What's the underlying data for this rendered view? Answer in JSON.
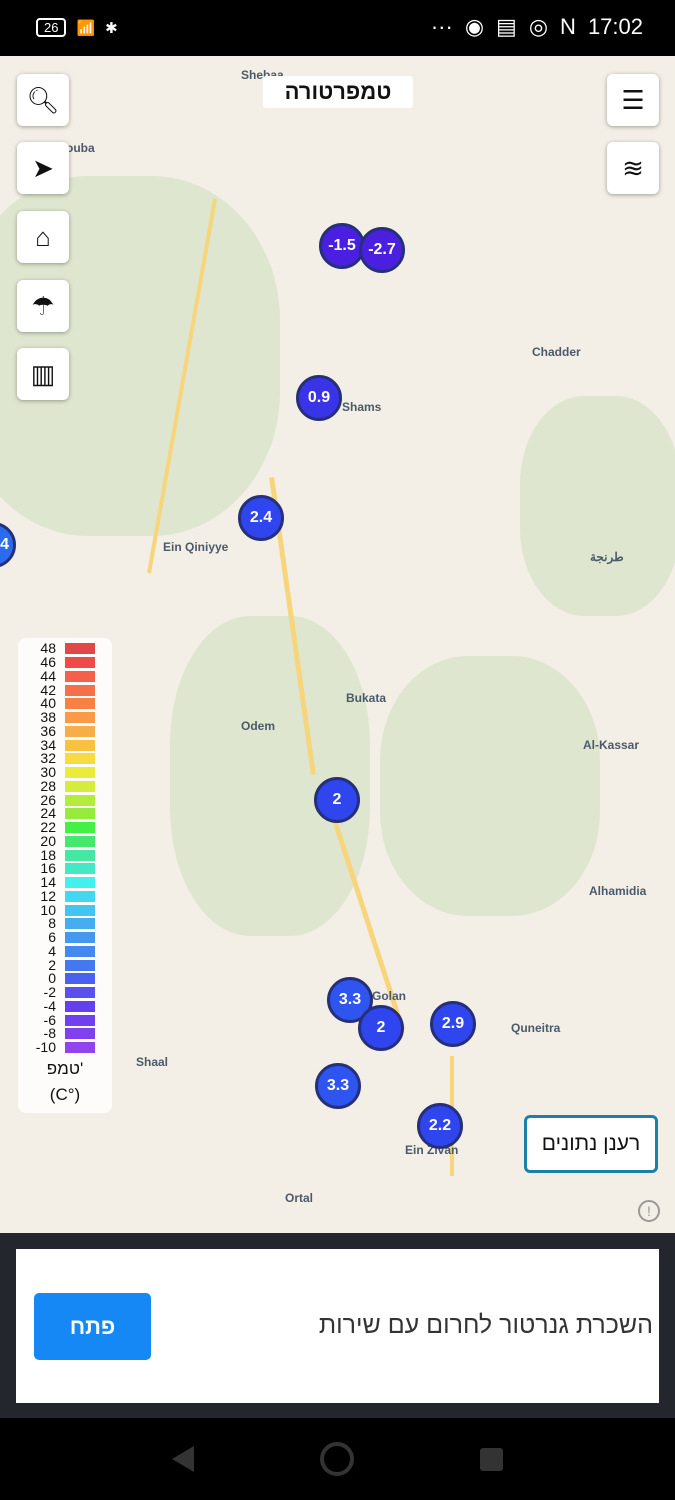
{
  "status_bar": {
    "battery": "26",
    "time": "17:02",
    "dots": "···"
  },
  "map": {
    "title": "טמפרטורה",
    "places": [
      {
        "name": "Shebaa"
      },
      {
        "name": "ouba"
      },
      {
        "name": "Chadder"
      },
      {
        "name": "Shams"
      },
      {
        "name": "Ein Qiniyye"
      },
      {
        "name": "طرنجة"
      },
      {
        "name": "Bukata"
      },
      {
        "name": "Odem"
      },
      {
        "name": "Al-Kassar"
      },
      {
        "name": "Alhamidia"
      },
      {
        "name": "Golan"
      },
      {
        "name": "Quneitra"
      },
      {
        "name": "Shaal"
      },
      {
        "name": "Ein Zivan"
      },
      {
        "name": "Ortal"
      }
    ],
    "markers": [
      {
        "value": "-1.5",
        "color": "#4a1fe0"
      },
      {
        "value": "-2.7",
        "color": "#4a1fe0"
      },
      {
        "value": "0.9",
        "color": "#3a34e8"
      },
      {
        "value": "2.4",
        "color": "#2f45ee"
      },
      {
        "value": "4",
        "color": "#2a6cf0"
      },
      {
        "value": "2",
        "color": "#2f45ee"
      },
      {
        "value": "3.3",
        "color": "#2f55f0"
      },
      {
        "value": "2",
        "color": "#2f45ee"
      },
      {
        "value": "2.9",
        "color": "#2f45ee"
      },
      {
        "value": "3.3",
        "color": "#2f55f0"
      },
      {
        "value": "2.2",
        "color": "#2f45ee"
      }
    ],
    "legend": {
      "values": [
        "48",
        "46",
        "44",
        "42",
        "40",
        "38",
        "36",
        "34",
        "32",
        "30",
        "28",
        "26",
        "24",
        "22",
        "20",
        "18",
        "16",
        "14",
        "12",
        "10",
        "8",
        "6",
        "4",
        "2",
        "0",
        "-2",
        "-4",
        "-6",
        "-8",
        "-10"
      ],
      "colors": [
        "#e04848",
        "#f04a4a",
        "#f5604a",
        "#f5704a",
        "#f88040",
        "#f89a48",
        "#f8ae48",
        "#f8c240",
        "#f6dc40",
        "#eaec3c",
        "#d4ec3c",
        "#b4ec3c",
        "#96ec3c",
        "#44f044",
        "#44e870",
        "#44e8a0",
        "#44e8c4",
        "#44f0ec",
        "#44d8f0",
        "#44c4f0",
        "#44aef0",
        "#4498f0",
        "#4488f0",
        "#4478f0",
        "#4a60ee",
        "#5a50ee",
        "#6440ee",
        "#7040ee",
        "#8040ee",
        "#9044ee"
      ],
      "label": "טמפ'",
      "unit": "(C°)"
    },
    "refresh_label": "רענן נתונים",
    "info_icon": "!"
  },
  "ad": {
    "text": "השכרת גנרטור לחרום עם שירות",
    "button": "פתח"
  }
}
